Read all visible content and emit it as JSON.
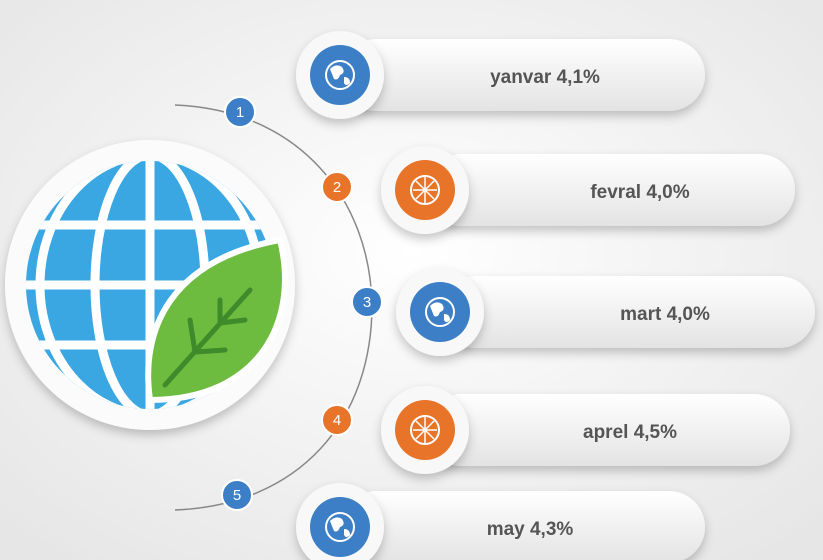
{
  "items": [
    {
      "number": "1",
      "label": "yanvar 4,1%",
      "color": "#3d7fc6"
    },
    {
      "number": "2",
      "label": "fevral 4,0%",
      "color": "#e8742a"
    },
    {
      "number": "3",
      "label": "mart 4,0%",
      "color": "#3d7fc6"
    },
    {
      "number": "4",
      "label": "aprel 4,5%",
      "color": "#e8742a"
    },
    {
      "number": "5",
      "label": "may 4,3%",
      "color": "#3d7fc6"
    }
  ]
}
